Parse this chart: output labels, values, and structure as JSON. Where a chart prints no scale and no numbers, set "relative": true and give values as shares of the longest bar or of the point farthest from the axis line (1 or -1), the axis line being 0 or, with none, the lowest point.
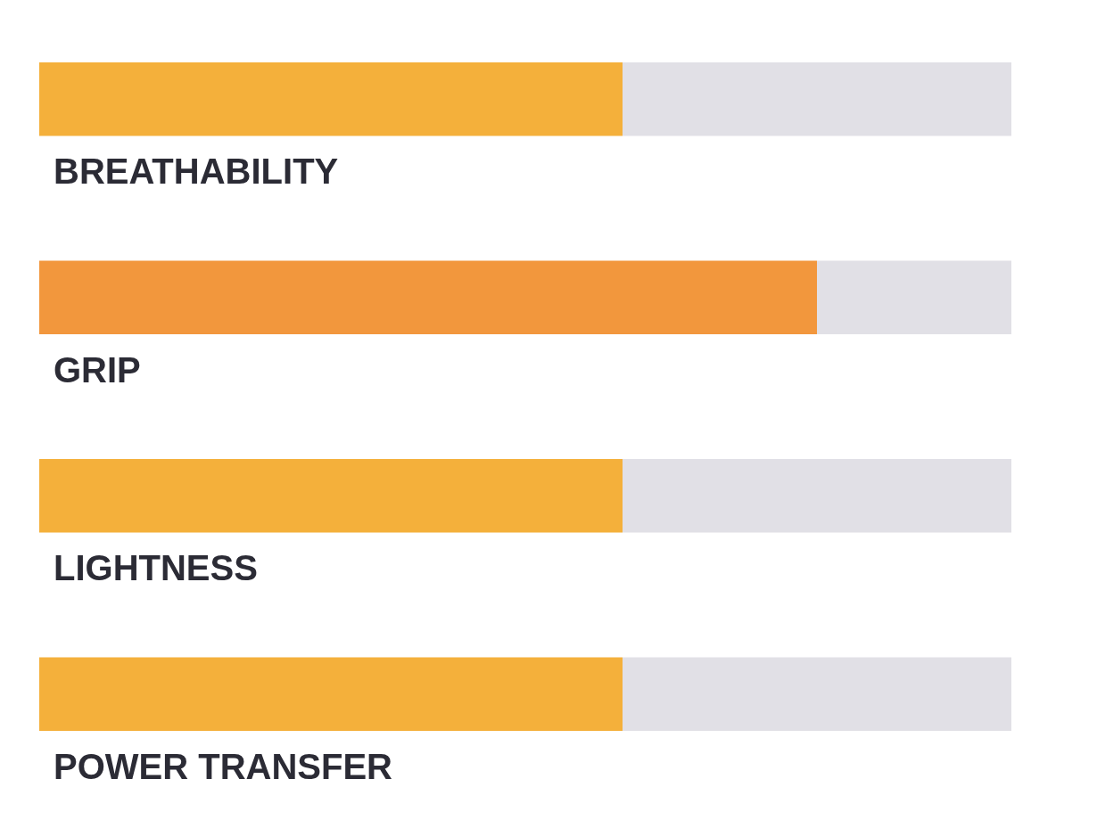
{
  "chart_data": {
    "type": "bar",
    "orientation": "horizontal",
    "stacked": true,
    "relative": true,
    "categories": [
      "BREATHABILITY",
      "GRIP",
      "LIGHTNESS",
      "POWER TRANSFER"
    ],
    "series": [
      {
        "colors": [
          "#f4b03b",
          "#f2973d",
          "#f4b03b",
          "#f4b03b"
        ],
        "values": [
          0.6,
          0.8,
          0.6,
          0.6
        ]
      },
      {
        "color": "#e1e0e6",
        "values": [
          0.4,
          0.2,
          0.4,
          0.4
        ]
      }
    ]
  }
}
